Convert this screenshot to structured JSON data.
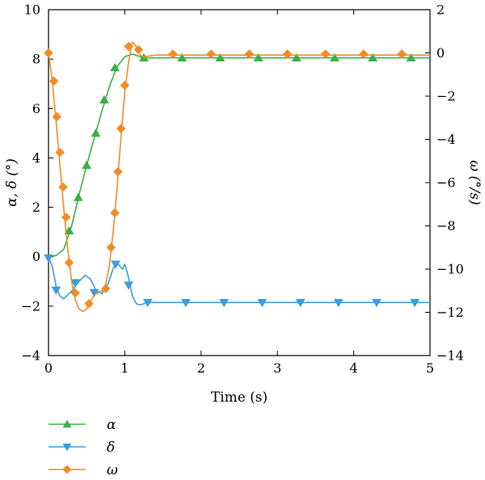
{
  "chart_data": {
    "type": "line",
    "xlabel": "Time (s)",
    "ylabel_left": "α, δ (°)",
    "ylabel_right": "ω (°/s)",
    "xlim": [
      0,
      5
    ],
    "ylim_left": [
      -4,
      10
    ],
    "ylim_right": [
      -14,
      2
    ],
    "x_ticks": [
      0,
      1,
      2,
      3,
      4,
      5
    ],
    "y_ticks_left": [
      -4,
      -2,
      0,
      2,
      4,
      6,
      8,
      10
    ],
    "y_ticks_right": [
      -14,
      -12,
      -10,
      -8,
      -6,
      -4,
      -2,
      0,
      2
    ],
    "grid": false,
    "legend_position": "bottom-left",
    "series": [
      {
        "name": "α",
        "axis": "left",
        "color": "#3cb043",
        "marker": "triangle-up",
        "line": [
          [
            0,
            0
          ],
          [
            0.1,
            0.05
          ],
          [
            0.2,
            0.3
          ],
          [
            0.3,
            1.2
          ],
          [
            0.4,
            2.5
          ],
          [
            0.5,
            3.7
          ],
          [
            0.6,
            4.8
          ],
          [
            0.7,
            5.9
          ],
          [
            0.8,
            6.9
          ],
          [
            0.9,
            7.7
          ],
          [
            1.0,
            8.1
          ],
          [
            1.1,
            8.2
          ],
          [
            1.2,
            8.1
          ],
          [
            1.25,
            8.05
          ],
          [
            1.5,
            8.05
          ],
          [
            2,
            8.05
          ],
          [
            3,
            8.05
          ],
          [
            4,
            8.05
          ],
          [
            5,
            8.05
          ]
        ],
        "markers": [
          [
            0.27,
            1.05
          ],
          [
            0.39,
            2.4
          ],
          [
            0.5,
            3.7
          ],
          [
            0.62,
            5.0
          ],
          [
            0.73,
            6.35
          ],
          [
            0.87,
            7.65
          ],
          [
            1.25,
            8.05
          ],
          [
            1.75,
            8.05
          ],
          [
            2.25,
            8.05
          ],
          [
            2.75,
            8.05
          ],
          [
            3.25,
            8.05
          ],
          [
            3.75,
            8.05
          ],
          [
            4.25,
            8.05
          ],
          [
            4.75,
            8.05
          ]
        ]
      },
      {
        "name": "δ",
        "axis": "left",
        "color": "#3b9ddb",
        "marker": "triangle-down",
        "line": [
          [
            0,
            0
          ],
          [
            0.05,
            -0.4
          ],
          [
            0.1,
            -1.2
          ],
          [
            0.15,
            -1.6
          ],
          [
            0.2,
            -1.7
          ],
          [
            0.3,
            -1.4
          ],
          [
            0.4,
            -1.0
          ],
          [
            0.48,
            -0.75
          ],
          [
            0.55,
            -0.9
          ],
          [
            0.62,
            -1.35
          ],
          [
            0.7,
            -1.5
          ],
          [
            0.78,
            -1.1
          ],
          [
            0.85,
            -0.45
          ],
          [
            0.9,
            -0.25
          ],
          [
            0.97,
            -0.5
          ],
          [
            1.0,
            -0.3
          ],
          [
            1.05,
            -0.85
          ],
          [
            1.1,
            -1.6
          ],
          [
            1.15,
            -1.9
          ],
          [
            1.2,
            -1.95
          ],
          [
            1.3,
            -1.85
          ],
          [
            1.5,
            -1.85
          ],
          [
            2,
            -1.85
          ],
          [
            3,
            -1.85
          ],
          [
            4,
            -1.85
          ],
          [
            5,
            -1.85
          ]
        ],
        "markers": [
          [
            0,
            -0.05
          ],
          [
            0.1,
            -1.35
          ],
          [
            0.35,
            -1.05
          ],
          [
            0.6,
            -1.45
          ],
          [
            0.88,
            -0.3
          ],
          [
            1.05,
            -1.15
          ],
          [
            1.3,
            -1.85
          ],
          [
            1.8,
            -1.85
          ],
          [
            2.3,
            -1.85
          ],
          [
            2.8,
            -1.85
          ],
          [
            3.3,
            -1.85
          ],
          [
            3.8,
            -1.85
          ],
          [
            4.3,
            -1.85
          ],
          [
            4.8,
            -1.85
          ]
        ]
      },
      {
        "name": "ω",
        "axis": "right",
        "color": "#f28c28",
        "marker": "diamond",
        "line": [
          [
            0,
            0
          ],
          [
            0.05,
            -1.3
          ],
          [
            0.1,
            -3.2
          ],
          [
            0.15,
            -5.2
          ],
          [
            0.2,
            -7.2
          ],
          [
            0.25,
            -9.0
          ],
          [
            0.3,
            -10.5
          ],
          [
            0.35,
            -11.4
          ],
          [
            0.4,
            -11.85
          ],
          [
            0.45,
            -11.95
          ],
          [
            0.5,
            -11.85
          ],
          [
            0.55,
            -11.5
          ],
          [
            0.6,
            -11.2
          ],
          [
            0.65,
            -11.1
          ],
          [
            0.7,
            -11.0
          ],
          [
            0.75,
            -10.7
          ],
          [
            0.8,
            -9.8
          ],
          [
            0.85,
            -8.2
          ],
          [
            0.9,
            -6.2
          ],
          [
            0.95,
            -3.9
          ],
          [
            1.0,
            -1.8
          ],
          [
            1.05,
            -0.4
          ],
          [
            1.1,
            0.5
          ],
          [
            1.15,
            0.3
          ],
          [
            1.2,
            -0.1
          ],
          [
            1.25,
            -0.2
          ],
          [
            1.3,
            -0.15
          ],
          [
            1.4,
            -0.1
          ],
          [
            1.6,
            -0.1
          ],
          [
            2,
            -0.1
          ],
          [
            3,
            -0.1
          ],
          [
            4,
            -0.1
          ],
          [
            5,
            -0.1
          ]
        ],
        "markers": [
          [
            0,
            0
          ],
          [
            0.07,
            -1.3
          ],
          [
            0.11,
            -2.95
          ],
          [
            0.15,
            -4.6
          ],
          [
            0.19,
            -6.2
          ],
          [
            0.23,
            -7.6
          ],
          [
            0.27,
            -9.7
          ],
          [
            0.35,
            -11.1
          ],
          [
            0.53,
            -11.6
          ],
          [
            0.75,
            -10.9
          ],
          [
            0.82,
            -9.0
          ],
          [
            0.87,
            -7.4
          ],
          [
            0.91,
            -5.5
          ],
          [
            0.95,
            -3.5
          ],
          [
            1.0,
            -1.5
          ],
          [
            1.05,
            0.3
          ],
          [
            1.18,
            0.15
          ],
          [
            1.63,
            -0.05
          ],
          [
            2.13,
            -0.05
          ],
          [
            2.63,
            -0.05
          ],
          [
            3.13,
            -0.05
          ],
          [
            3.63,
            -0.05
          ],
          [
            4.13,
            -0.05
          ],
          [
            4.63,
            -0.05
          ]
        ]
      }
    ]
  }
}
